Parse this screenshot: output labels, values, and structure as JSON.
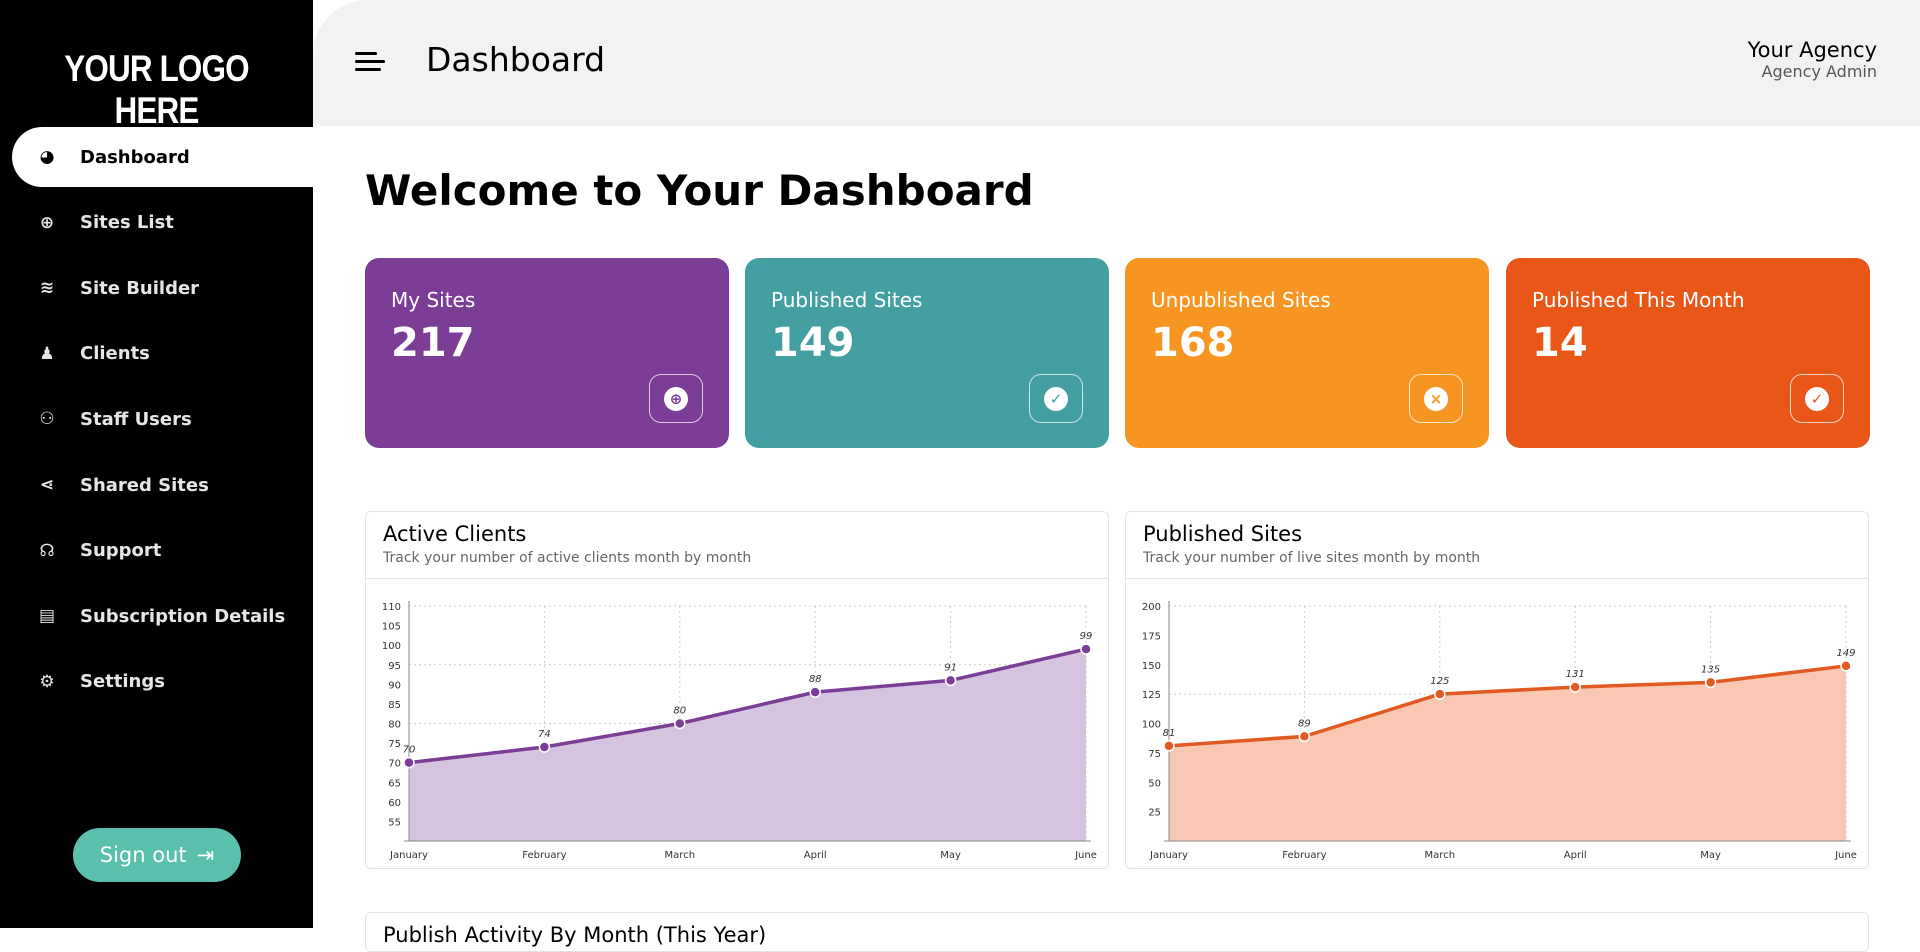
{
  "sidebar": {
    "logo": "YOUR LOGO HERE",
    "items": [
      {
        "label": "Dashboard",
        "icon": "gauge-icon",
        "glyph": "◕",
        "active": true
      },
      {
        "label": "Sites List",
        "icon": "globe-icon",
        "glyph": "⊕"
      },
      {
        "label": "Site Builder",
        "icon": "layers-icon",
        "glyph": "≋"
      },
      {
        "label": "Clients",
        "icon": "user-tie-icon",
        "glyph": "♟"
      },
      {
        "label": "Staff Users",
        "icon": "users-icon",
        "glyph": "⚇"
      },
      {
        "label": "Shared Sites",
        "icon": "share-icon",
        "glyph": "⋖"
      },
      {
        "label": "Support",
        "icon": "headset-icon",
        "glyph": "☊"
      },
      {
        "label": "Subscription Details",
        "icon": "receipt-icon",
        "glyph": "▤"
      },
      {
        "label": "Settings",
        "icon": "gear-icon",
        "glyph": "⚙"
      }
    ],
    "signout": "Sign out",
    "signout_icon": "⇥"
  },
  "header": {
    "title": "Dashboard",
    "agency_name": "Your Agency",
    "agency_role": "Agency Admin"
  },
  "main": {
    "welcome": "Welcome to Your Dashboard",
    "stats": [
      {
        "label": "My Sites",
        "value": "217",
        "color": "#7b3d96",
        "icon": "globe-icon",
        "glyph": "⊕"
      },
      {
        "label": "Published Sites",
        "value": "149",
        "color": "#439fa2",
        "icon": "check-circle-icon",
        "glyph": "✓"
      },
      {
        "label": "Unpublished Sites",
        "value": "168",
        "color": "#f79522",
        "icon": "x-circle-icon",
        "glyph": "×"
      },
      {
        "label": "Published This Month",
        "value": "14",
        "color": "#e85618",
        "icon": "calendar-check-icon",
        "glyph": "✓"
      }
    ],
    "bottom_card_title": "Publish Activity By Month (This Year)"
  },
  "chart_data": [
    {
      "type": "area",
      "title": "Active Clients",
      "subtitle": "Track your number of active clients month by month",
      "categories": [
        "January",
        "February",
        "March",
        "April",
        "May",
        "June"
      ],
      "values": [
        70,
        74,
        80,
        88,
        91,
        99
      ],
      "ylim": [
        50,
        110
      ],
      "yticks": [
        55,
        60,
        65,
        70,
        75,
        80,
        85,
        90,
        95,
        100,
        105,
        110
      ],
      "color": "#7b3d96",
      "fill": "#d6c3e0",
      "grid": true
    },
    {
      "type": "area",
      "title": "Published Sites",
      "subtitle": "Track your number of live sites month by month",
      "categories": [
        "January",
        "February",
        "March",
        "April",
        "May",
        "June"
      ],
      "values": [
        81,
        89,
        125,
        131,
        135,
        149
      ],
      "ylim": [
        0,
        200
      ],
      "yticks": [
        25,
        50,
        75,
        100,
        125,
        150,
        175,
        200
      ],
      "color": "#e05a22",
      "fill": "#f8c8b4",
      "grid": true
    }
  ]
}
